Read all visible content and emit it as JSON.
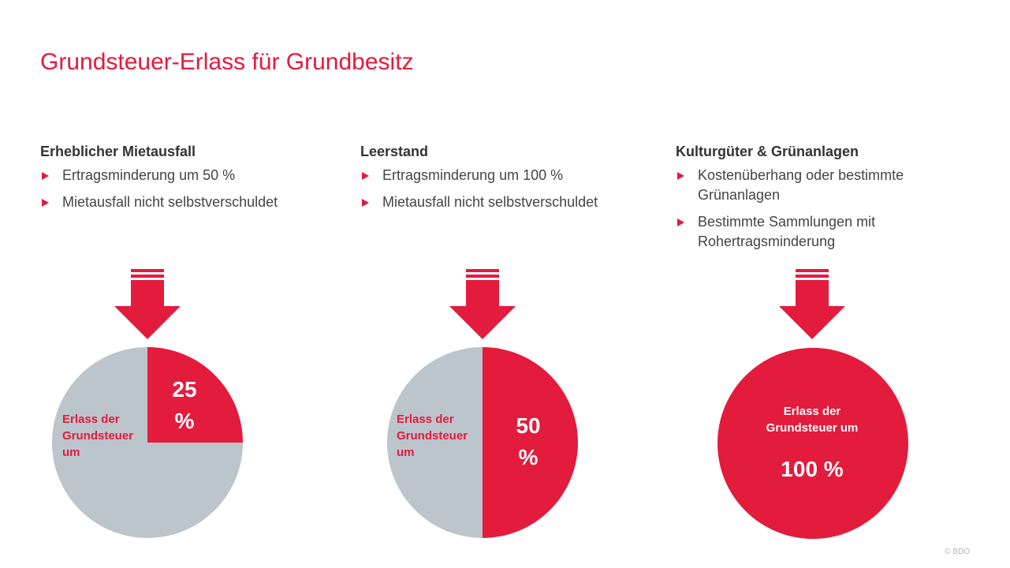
{
  "title": "Grundsteuer-Erlass für Grundbesitz",
  "colors": {
    "accent": "#e31b3d",
    "grey": "#bcc4cc",
    "text": "#333333"
  },
  "columns": [
    {
      "heading": "Erheblicher Mietausfall",
      "bullets": [
        "Ertragsminderung um 50 %",
        "Mietausfall nicht selbstverschuldet"
      ]
    },
    {
      "heading": "Leerstand",
      "bullets": [
        "Ertragsminderung um 100 %",
        "Mietausfall nicht selbstverschuldet"
      ]
    },
    {
      "heading": "Kulturgüter & Grünanlagen",
      "bullets": [
        "Kostenüberhang oder bestimmte Grünanlagen",
        "Bestimmte Sammlungen mit Rohertragsminderung"
      ]
    }
  ],
  "chart_data": [
    {
      "type": "pie",
      "label": [
        "Erlass der",
        "Grundsteuer",
        "um"
      ],
      "value_label": [
        "25",
        "%"
      ],
      "slices": [
        {
          "name": "Erlass der Grundsteuer",
          "value": 25
        },
        {
          "name": "Rest",
          "value": 75
        }
      ]
    },
    {
      "type": "pie",
      "label": [
        "Erlass der",
        "Grundsteuer",
        "um"
      ],
      "value_label": [
        "50",
        "%"
      ],
      "slices": [
        {
          "name": "Erlass der Grundsteuer",
          "value": 50
        },
        {
          "name": "Rest",
          "value": 50
        }
      ]
    },
    {
      "type": "pie",
      "label": [
        "Erlass der",
        "Grundsteuer um"
      ],
      "value_label": [
        "100 %"
      ],
      "slices": [
        {
          "name": "Erlass der Grundsteuer",
          "value": 100
        }
      ]
    }
  ],
  "footer": {
    "copyright": "© BDO"
  }
}
